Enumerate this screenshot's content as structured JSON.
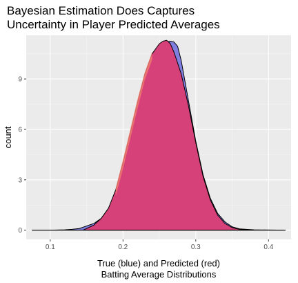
{
  "chart_data": {
    "type": "area",
    "title_lines": [
      "Bayesian Estimation Does Captures",
      "Uncertainty in Player Predicted Averages"
    ],
    "xlabel_lines": [
      "True (blue) and Predicted (red)",
      "Batting Average Distributions"
    ],
    "ylabel": "count",
    "xlim": [
      0.067,
      0.431
    ],
    "ylim": [
      -0.55,
      11.6
    ],
    "x_ticks": [
      0.1,
      0.2,
      0.3,
      0.4
    ],
    "x_tick_labels": [
      "0.1",
      "0.2",
      "0.3",
      "0.4"
    ],
    "y_ticks": [
      0,
      3,
      6,
      9
    ],
    "y_tick_labels": [
      "0",
      "3",
      "6",
      "9"
    ],
    "grid": true,
    "background": "#ebebeb",
    "series": [
      {
        "fill": "#7f7fe0",
        "x": [
          0.075,
          0.1,
          0.12,
          0.13,
          0.14,
          0.15,
          0.16,
          0.17,
          0.18,
          0.19,
          0.2,
          0.21,
          0.22,
          0.23,
          0.24,
          0.25,
          0.26,
          0.265,
          0.27,
          0.275,
          0.28,
          0.29,
          0.3,
          0.31,
          0.32,
          0.33,
          0.34,
          0.35,
          0.36,
          0.38,
          0.4,
          0.423
        ],
        "y": [
          0,
          0,
          0.02,
          0.05,
          0.1,
          0.25,
          0.4,
          0.7,
          1.3,
          2.3,
          3.5,
          5.0,
          6.6,
          8.3,
          9.8,
          10.8,
          11.2,
          11.25,
          11.2,
          10.95,
          10.1,
          7.7,
          5.3,
          3.3,
          1.9,
          1.0,
          0.5,
          0.2,
          0.08,
          0.02,
          0.01,
          0
        ]
      },
      {
        "fill": "#d7417a",
        "x": [
          0.145,
          0.16,
          0.17,
          0.18,
          0.19,
          0.2,
          0.21,
          0.22,
          0.23,
          0.24,
          0.25,
          0.255,
          0.26,
          0.265,
          0.27,
          0.28,
          0.29,
          0.3,
          0.31,
          0.32,
          0.33,
          0.34,
          0.35,
          0.36,
          0.38
        ],
        "y": [
          0,
          0.3,
          0.7,
          1.3,
          2.4,
          4.0,
          5.8,
          7.6,
          9.3,
          10.5,
          11.1,
          11.25,
          11.3,
          11.1,
          10.6,
          9.3,
          7.4,
          5.2,
          3.2,
          1.8,
          0.9,
          0.4,
          0.15,
          0.05,
          0
        ]
      }
    ],
    "red_left_shoulder": {
      "x": [
        0.19,
        0.2,
        0.21,
        0.22,
        0.23,
        0.24
      ],
      "y": [
        2.5,
        4.2,
        6.0,
        7.8,
        9.4,
        10.6
      ],
      "fill": "#f27b70"
    }
  }
}
